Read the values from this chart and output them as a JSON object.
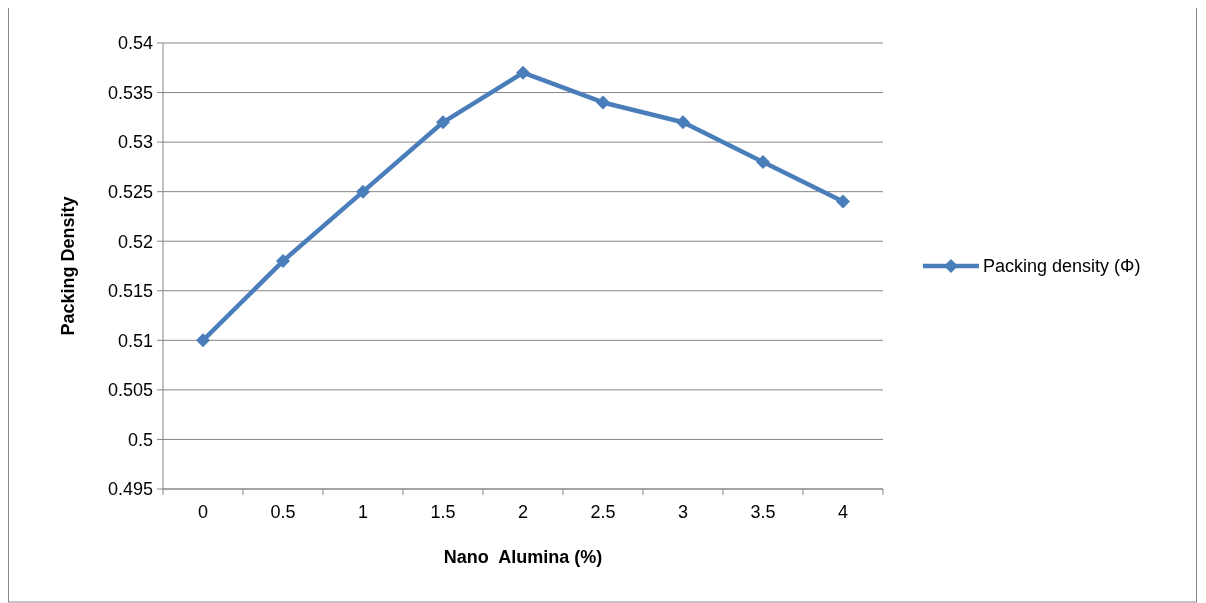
{
  "chart_data": {
    "type": "line",
    "xlabel": "Nano  Alumina (%)",
    "ylabel": "Packing Density",
    "categories": [
      "0",
      "0.5",
      "1",
      "1.5",
      "2",
      "2.5",
      "3",
      "3.5",
      "4"
    ],
    "series": [
      {
        "name": "Packing density (Φ)",
        "color": "#4a7ebb",
        "values": [
          0.51,
          0.518,
          0.525,
          0.532,
          0.537,
          0.534,
          0.532,
          0.528,
          0.524
        ]
      }
    ],
    "ylim": [
      0.495,
      0.54
    ],
    "yticks": [
      0.495,
      0.5,
      0.505,
      0.51,
      0.515,
      0.52,
      0.525,
      0.53,
      0.535,
      0.54
    ],
    "grid": "y",
    "legend": "right",
    "marker": "diamond",
    "line_style": "solid"
  }
}
